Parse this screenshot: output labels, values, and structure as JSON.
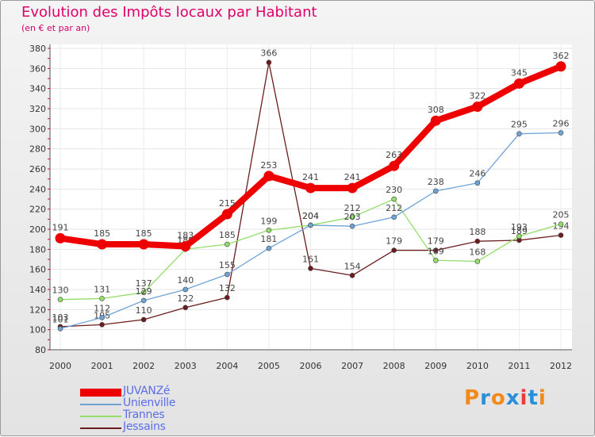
{
  "chart_data": {
    "type": "line",
    "title": "Evolution des Impôts locaux par Habitant",
    "subtitle": "(en € et par an)",
    "x": [
      "2000",
      "2001",
      "2002",
      "2003",
      "2004",
      "2005",
      "2006",
      "2007",
      "2008",
      "2009",
      "2010",
      "2011",
      "2012"
    ],
    "ylim": [
      80,
      380
    ],
    "yticks": [
      80,
      100,
      120,
      140,
      160,
      180,
      200,
      220,
      240,
      260,
      280,
      300,
      320,
      340,
      360,
      380
    ],
    "grid": true,
    "series": [
      {
        "name": "Jessains",
        "color": "#6b1d1d",
        "values": [
          103,
          105,
          110,
          122,
          132,
          366,
          161,
          154,
          179,
          179,
          188,
          189,
          194
        ]
      },
      {
        "name": "Trannes",
        "color": "#93dd6a",
        "values": [
          130,
          131,
          137,
          180,
          185,
          199,
          204,
          212,
          230,
          169,
          168,
          193,
          205
        ]
      },
      {
        "name": "Unienville",
        "color": "#6fa3d4",
        "values": [
          101,
          112,
          129,
          140,
          155,
          181,
          204,
          203,
          212,
          238,
          246,
          295,
          296
        ]
      },
      {
        "name": "JUVANZé",
        "color": "#ee0000",
        "values": [
          191,
          185,
          185,
          183,
          215,
          253,
          241,
          241,
          263,
          308,
          322,
          345,
          362
        ]
      }
    ],
    "legend_order": [
      "JUVANZé",
      "Unienville",
      "Trannes",
      "Jessains"
    ]
  },
  "logo": {
    "text": "Proxiti",
    "colors": [
      "#f08a1c",
      "#2a8fd6",
      "#f08a1c",
      "#2a8fd6",
      "#ee3a3a",
      "#2a8fd6",
      "#f08a1c"
    ]
  }
}
